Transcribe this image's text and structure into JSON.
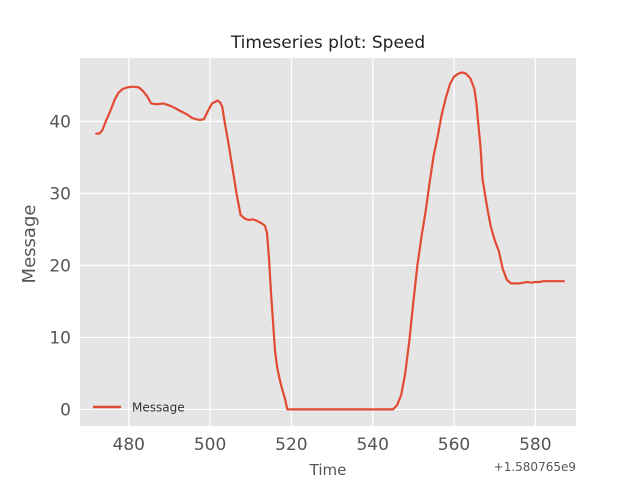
{
  "chart_data": {
    "type": "line",
    "title": "Timeseries plot: Speed",
    "xlabel": "Time",
    "ylabel": "Message",
    "x_offset_text": "+1.580765e9",
    "xlim": [
      468,
      590
    ],
    "ylim": [
      -2.3,
      48.8
    ],
    "xticks": [
      480,
      500,
      520,
      540,
      560,
      580
    ],
    "yticks": [
      0,
      10,
      20,
      30,
      40
    ],
    "grid": true,
    "legend_position": "lower-left",
    "series": [
      {
        "name": "Message",
        "color": "#E24A33",
        "x": [
          472,
          472.8,
          473.5,
          474.5,
          475.5,
          476.5,
          477.5,
          478.5,
          479.5,
          480.5,
          481.5,
          482.5,
          483.5,
          484.5,
          485.5,
          486.5,
          487.5,
          488.5,
          489.5,
          490.5,
          491.5,
          492.5,
          493.5,
          494.5,
          495.5,
          496.5,
          497.5,
          498.5,
          499.5,
          500.5,
          501.2,
          501.8,
          502.5,
          503,
          503.5,
          504.5,
          505.5,
          506.5,
          507.5,
          508.5,
          509.5,
          510.5,
          511.5,
          512.5,
          513,
          513.5,
          514,
          514.5,
          515,
          515.5,
          516,
          516.5,
          517,
          517.5,
          518,
          518.5,
          519,
          519.5,
          520,
          520.5,
          521,
          522,
          530,
          540,
          545,
          546,
          546.5,
          547,
          548,
          549,
          550,
          551,
          552,
          553,
          554,
          555,
          556,
          557,
          558,
          559,
          560,
          561,
          562,
          563,
          564,
          565,
          565.5,
          566,
          566.5,
          567,
          568,
          569,
          570,
          571,
          572,
          573,
          574,
          575,
          576,
          577,
          578,
          579,
          580,
          581,
          582,
          583,
          584,
          585,
          586,
          587
        ],
        "values": [
          38.3,
          38.3,
          38.8,
          40.2,
          41.5,
          43,
          44,
          44.5,
          44.7,
          44.8,
          44.8,
          44.7,
          44.2,
          43.5,
          42.5,
          42.4,
          42.4,
          42.5,
          42.3,
          42.1,
          41.8,
          41.5,
          41.2,
          40.9,
          40.5,
          40.3,
          40.2,
          40.3,
          41.5,
          42.5,
          42.7,
          42.9,
          42.6,
          42,
          40.2,
          37,
          33.5,
          30,
          27,
          26.5,
          26.3,
          26.4,
          26.2,
          25.9,
          25.7,
          25.5,
          24.5,
          21,
          16,
          12,
          8,
          5.8,
          4.5,
          3.3,
          2.3,
          1.3,
          0,
          0,
          0,
          0,
          0,
          0,
          0,
          0,
          0,
          0.6,
          1.3,
          2,
          5,
          9.5,
          15,
          20,
          24,
          27.5,
          31.5,
          35.3,
          38,
          41,
          43.3,
          45.2,
          46.2,
          46.6,
          46.8,
          46.6,
          46,
          44.5,
          42.5,
          39.5,
          36.5,
          32,
          28.5,
          25.5,
          23.5,
          22,
          19.5,
          18,
          17.5,
          17.5,
          17.5,
          17.6,
          17.7,
          17.6,
          17.7,
          17.7,
          17.8,
          17.8,
          17.8,
          17.8,
          17.8,
          17.8
        ]
      }
    ]
  }
}
